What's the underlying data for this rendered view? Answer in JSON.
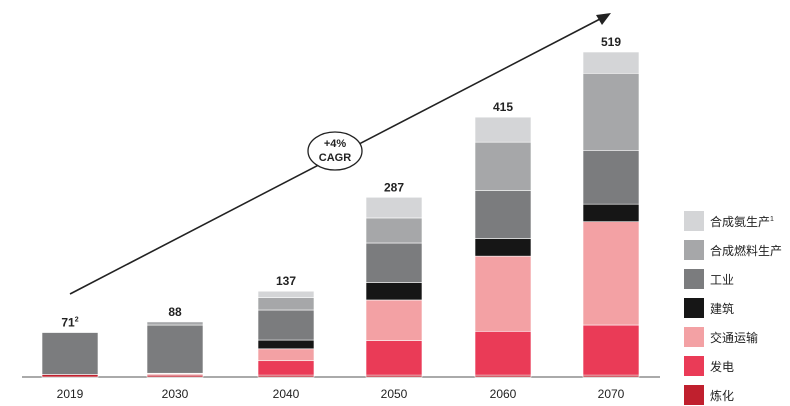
{
  "chart_data": {
    "type": "bar",
    "stacked": true,
    "categories": [
      "2019",
      "2030",
      "2040",
      "2050",
      "2060",
      "2070"
    ],
    "totals": [
      "71",
      "88",
      "137",
      "287",
      "415",
      "519"
    ],
    "total_superscripts": [
      "2",
      "",
      "",
      "",
      "",
      ""
    ],
    "annotation": {
      "line1": "+4%",
      "line2": "CAGR"
    },
    "series": [
      {
        "name": "炼化",
        "color": "#c0202e",
        "values": [
          4,
          3,
          3,
          3,
          3,
          3
        ]
      },
      {
        "name": "发电",
        "color": "#ea3b57",
        "values": [
          0,
          0,
          23,
          55,
          70,
          80
        ]
      },
      {
        "name": "交通运输",
        "color": "#f3a1a4",
        "values": [
          0,
          2,
          19,
          65,
          120,
          165
        ]
      },
      {
        "name": "建筑",
        "color": "#161616",
        "values": [
          0,
          1,
          14,
          28,
          28,
          28
        ]
      },
      {
        "name": "工业",
        "color": "#7b7c7e",
        "values": [
          67,
          77,
          48,
          63,
          77,
          86
        ]
      },
      {
        "name": "合成燃料生产",
        "color": "#a6a7a9",
        "values": [
          0,
          5,
          20,
          40,
          77,
          123
        ]
      },
      {
        "name": "合成氨生产",
        "color": "#d4d5d7",
        "values": [
          0,
          0,
          10,
          33,
          40,
          34
        ]
      }
    ],
    "legend_superscripts": {
      "合成氨生产": "1"
    },
    "legend_position": "right",
    "grid": false
  }
}
